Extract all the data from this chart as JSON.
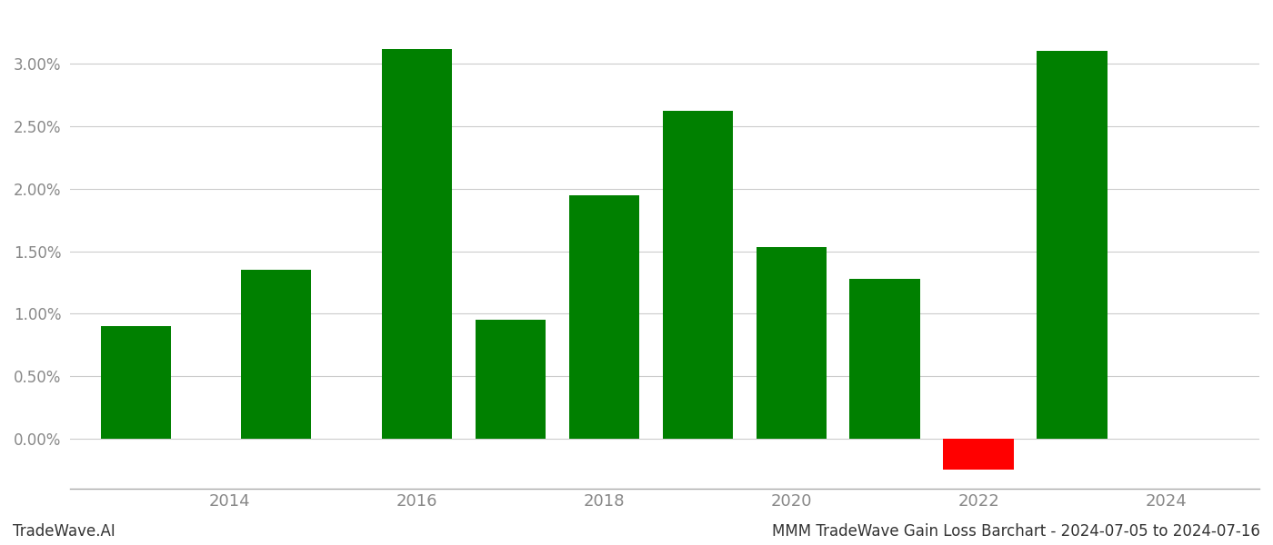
{
  "years": [
    2013,
    2014.5,
    2016,
    2017,
    2018,
    2019,
    2020,
    2021,
    2022,
    2023
  ],
  "values": [
    0.009,
    0.0135,
    0.0312,
    0.0095,
    0.0195,
    0.0262,
    0.0153,
    0.0128,
    -0.0025,
    0.031
  ],
  "bar_colors": [
    "#008000",
    "#008000",
    "#008000",
    "#008000",
    "#008000",
    "#008000",
    "#008000",
    "#008000",
    "#ff0000",
    "#008000"
  ],
  "background_color": "#ffffff",
  "grid_color": "#cccccc",
  "footer_left": "TradeWave.AI",
  "footer_right": "MMM TradeWave Gain Loss Barchart - 2024-07-05 to 2024-07-16",
  "xlim": [
    2012.3,
    2025.0
  ],
  "ylim": [
    -0.004,
    0.034
  ],
  "ytick_min": 0.0,
  "ytick_max": 0.03,
  "ytick_step": 0.005,
  "xtick_labels": [
    "2014",
    "2016",
    "2018",
    "2020",
    "2022",
    "2024"
  ],
  "xtick_positions": [
    2014,
    2016,
    2018,
    2020,
    2022,
    2024
  ],
  "bar_width": 0.75
}
